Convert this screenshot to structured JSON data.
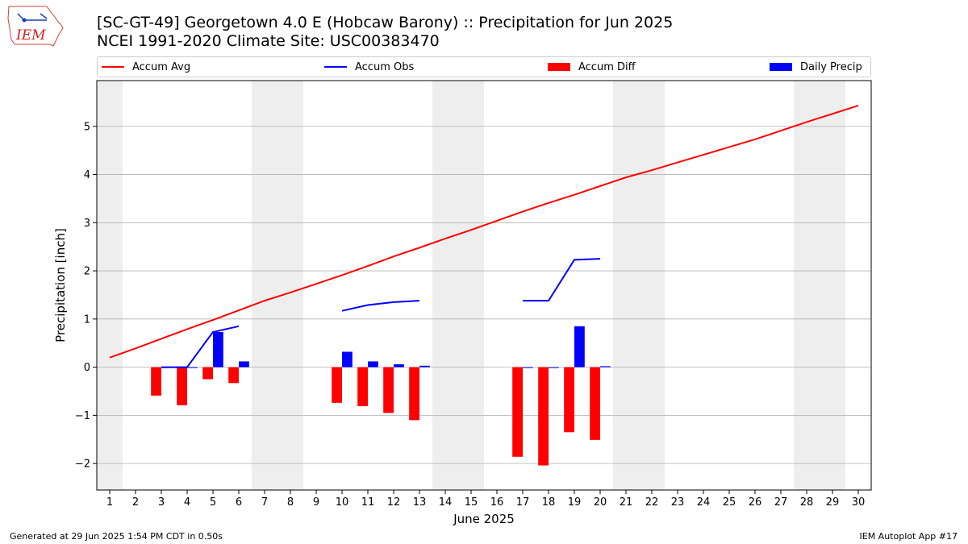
{
  "header": {
    "title_line1": "[SC-GT-49] Georgetown 4.0 E (Hobcaw Barony) :: Precipitation for Jun 2025",
    "title_line2": "NCEI 1991-2020 Climate Site: USC00383470",
    "logo_text": "IEM"
  },
  "legend": {
    "accum_avg": "Accum Avg",
    "accum_obs": "Accum Obs",
    "accum_diff": "Accum Diff",
    "daily_precip": "Daily Precip"
  },
  "footer": {
    "generated": "Generated at 29 Jun 2025 1:54 PM CDT in 0.50s",
    "app": "IEM Autoplot App #17"
  },
  "colors": {
    "avg": "#ff0000",
    "obs": "#0000ff",
    "diff": "#ff0000",
    "precip": "#0000ff",
    "weekend_shade": "#eeeeee",
    "grid": "#b0b0b0"
  },
  "chart_data": {
    "type": "bar",
    "xlabel": "June 2025",
    "ylabel": "Precipitation [inch]",
    "xlim": [
      0.5,
      30.5
    ],
    "ylim": [
      -2.55,
      5.95
    ],
    "yticks": [
      -2,
      -1,
      0,
      1,
      2,
      3,
      4,
      5
    ],
    "ytick_labels": [
      "−2",
      "−1",
      "0",
      "1",
      "2",
      "3",
      "4",
      "5"
    ],
    "days": [
      1,
      2,
      3,
      4,
      5,
      6,
      7,
      8,
      9,
      10,
      11,
      12,
      13,
      14,
      15,
      16,
      17,
      18,
      19,
      20,
      21,
      22,
      23,
      24,
      25,
      26,
      27,
      28,
      29,
      30
    ],
    "shaded_days": [
      [
        1,
        1
      ],
      [
        7,
        8
      ],
      [
        14,
        15
      ],
      [
        21,
        22
      ],
      [
        28,
        29
      ]
    ],
    "accum_avg": [
      0.2,
      0.39,
      0.59,
      0.79,
      0.98,
      1.18,
      1.38,
      1.55,
      1.73,
      1.91,
      2.1,
      2.3,
      2.48,
      2.67,
      2.85,
      3.04,
      3.23,
      3.41,
      3.58,
      3.76,
      3.94,
      4.09,
      4.25,
      4.41,
      4.57,
      4.73,
      4.91,
      5.09,
      5.26,
      5.43
    ],
    "accum_obs_segments": [
      [
        [
          3,
          0.0
        ],
        [
          4,
          0.0
        ],
        [
          5,
          0.73
        ],
        [
          6,
          0.85
        ]
      ],
      [
        [
          10,
          1.17
        ],
        [
          11,
          1.29
        ],
        [
          12,
          1.35
        ],
        [
          13,
          1.38
        ]
      ],
      [
        [
          17,
          1.38
        ],
        [
          18,
          1.38
        ],
        [
          19,
          2.23
        ],
        [
          20,
          2.25
        ]
      ]
    ],
    "accum_diff": [
      {
        "day": 3,
        "value": -0.59
      },
      {
        "day": 4,
        "value": -0.79
      },
      {
        "day": 5,
        "value": -0.25
      },
      {
        "day": 6,
        "value": -0.33
      },
      {
        "day": 10,
        "value": -0.74
      },
      {
        "day": 11,
        "value": -0.81
      },
      {
        "day": 12,
        "value": -0.95
      },
      {
        "day": 13,
        "value": -1.1
      },
      {
        "day": 17,
        "value": -1.86
      },
      {
        "day": 18,
        "value": -2.04
      },
      {
        "day": 19,
        "value": -1.35
      },
      {
        "day": 20,
        "value": -1.51
      }
    ],
    "daily_precip": [
      {
        "day": 3,
        "value": 0.0
      },
      {
        "day": 4,
        "value": 0.0
      },
      {
        "day": 5,
        "value": 0.73
      },
      {
        "day": 6,
        "value": 0.12
      },
      {
        "day": 10,
        "value": 0.32
      },
      {
        "day": 11,
        "value": 0.12
      },
      {
        "day": 12,
        "value": 0.06
      },
      {
        "day": 13,
        "value": 0.03
      },
      {
        "day": 17,
        "value": 0.0
      },
      {
        "day": 18,
        "value": 0.0
      },
      {
        "day": 19,
        "value": 0.85
      },
      {
        "day": 20,
        "value": 0.02
      }
    ]
  }
}
